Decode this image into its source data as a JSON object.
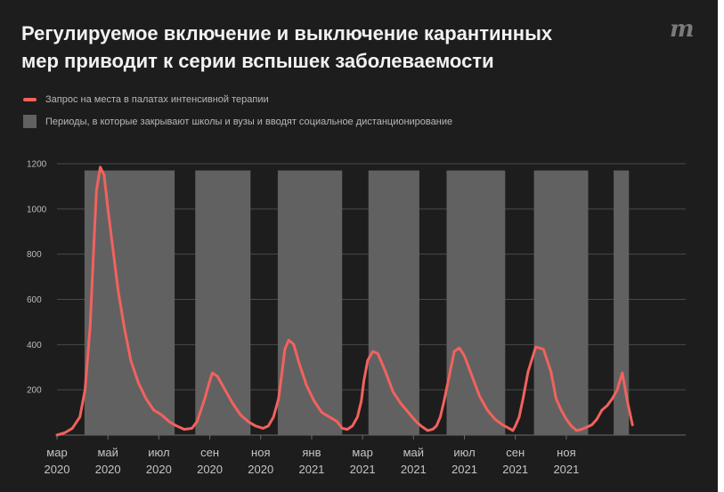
{
  "header": {
    "title_line1": "Регулируемое включение и выключение карантинных",
    "title_line2": "мер приводит к серии вспышек заболеваемости",
    "logo": "m"
  },
  "legend": {
    "line_label": "Запрос на места в палатах интенсивной терапии",
    "box_label": "Периоды, в которые закрывают школы и вузы и вводят социальное дистанционирование"
  },
  "colors": {
    "background": "#1d1d1d",
    "line": "#f2625e",
    "shade": "#616161",
    "grid": "#4a4a4a"
  },
  "chart_data": {
    "type": "line",
    "title": "Регулируемое включение и выключение карантинных мер приводит к серии вспышек заболеваемости",
    "xlabel": "",
    "ylabel": "",
    "xlim": [
      0,
      24.2
    ],
    "ylim": [
      0,
      1200
    ],
    "y_ticks": [
      {
        "value": 200,
        "label": "200"
      },
      {
        "value": 400,
        "label": "400"
      },
      {
        "value": 600,
        "label": "600"
      },
      {
        "value": 800,
        "label": "800"
      },
      {
        "value": 1000,
        "label": "1000"
      },
      {
        "value": 1200,
        "label": "1200"
      }
    ],
    "x_ticks": [
      {
        "value": 0,
        "month": "мар",
        "year": "2020"
      },
      {
        "value": 2,
        "month": "май",
        "year": "2020"
      },
      {
        "value": 4,
        "month": "июл",
        "year": "2020"
      },
      {
        "value": 6,
        "month": "сен",
        "year": "2020"
      },
      {
        "value": 8,
        "month": "ноя",
        "year": "2020"
      },
      {
        "value": 10,
        "month": "янв",
        "year": "2021"
      },
      {
        "value": 12,
        "month": "мар",
        "year": "2021"
      },
      {
        "value": 14,
        "month": "май",
        "year": "2021"
      },
      {
        "value": 16,
        "month": "июл",
        "year": "2021"
      },
      {
        "value": 18,
        "month": "сен",
        "year": "2021"
      },
      {
        "value": 20,
        "month": "ноя",
        "year": "2021"
      }
    ],
    "periods": [
      {
        "start": 1.08,
        "end": 4.62,
        "top": 1170
      },
      {
        "start": 5.43,
        "end": 7.6,
        "top": 1170
      },
      {
        "start": 8.67,
        "end": 11.2,
        "top": 1170
      },
      {
        "start": 12.23,
        "end": 14.23,
        "top": 1170
      },
      {
        "start": 15.3,
        "end": 17.6,
        "top": 1170
      },
      {
        "start": 18.73,
        "end": 20.86,
        "top": 1170
      },
      {
        "start": 21.86,
        "end": 22.46,
        "top": 1170
      }
    ],
    "series": [
      {
        "name": "Запрос на места в палатах интенсивной терапии",
        "x": [
          0,
          0.3,
          0.6,
          0.9,
          1.1,
          1.3,
          1.45,
          1.55,
          1.7,
          1.85,
          2.0,
          2.2,
          2.4,
          2.65,
          2.9,
          3.2,
          3.5,
          3.8,
          4.1,
          4.4,
          4.7,
          5.0,
          5.3,
          5.5,
          5.65,
          5.8,
          5.95,
          6.1,
          6.3,
          6.6,
          6.9,
          7.2,
          7.5,
          7.8,
          8.1,
          8.3,
          8.5,
          8.7,
          8.85,
          8.95,
          9.1,
          9.3,
          9.5,
          9.8,
          10.1,
          10.4,
          10.7,
          11.0,
          11.2,
          11.4,
          11.6,
          11.8,
          11.95,
          12.05,
          12.2,
          12.4,
          12.6,
          12.9,
          13.2,
          13.5,
          13.8,
          14.1,
          14.3,
          14.55,
          14.75,
          14.9,
          15.05,
          15.2,
          15.4,
          15.6,
          15.8,
          16.0,
          16.3,
          16.6,
          16.9,
          17.2,
          17.5,
          17.75,
          17.9,
          18.0,
          18.15,
          18.3,
          18.5,
          18.8,
          19.1,
          19.4,
          19.6,
          19.8,
          20.0,
          20.2,
          20.4,
          20.6,
          20.8,
          21.0,
          21.2,
          21.4,
          21.6,
          21.8,
          22.0,
          22.2,
          22.4,
          22.6
        ],
        "values": [
          0,
          10,
          30,
          80,
          200,
          480,
          850,
          1080,
          1185,
          1150,
          1000,
          820,
          640,
          470,
          330,
          230,
          160,
          110,
          90,
          60,
          40,
          25,
          30,
          60,
          110,
          160,
          220,
          275,
          260,
          200,
          140,
          90,
          60,
          40,
          30,
          40,
          80,
          160,
          290,
          380,
          420,
          400,
          320,
          220,
          150,
          100,
          80,
          60,
          30,
          25,
          40,
          80,
          150,
          240,
          330,
          370,
          360,
          280,
          190,
          140,
          100,
          60,
          40,
          20,
          25,
          40,
          80,
          150,
          260,
          370,
          385,
          350,
          260,
          170,
          110,
          70,
          45,
          30,
          20,
          40,
          80,
          160,
          280,
          390,
          380,
          280,
          160,
          110,
          70,
          40,
          20,
          25,
          35,
          45,
          70,
          110,
          130,
          160,
          200,
          275,
          150,
          45
        ]
      }
    ]
  }
}
